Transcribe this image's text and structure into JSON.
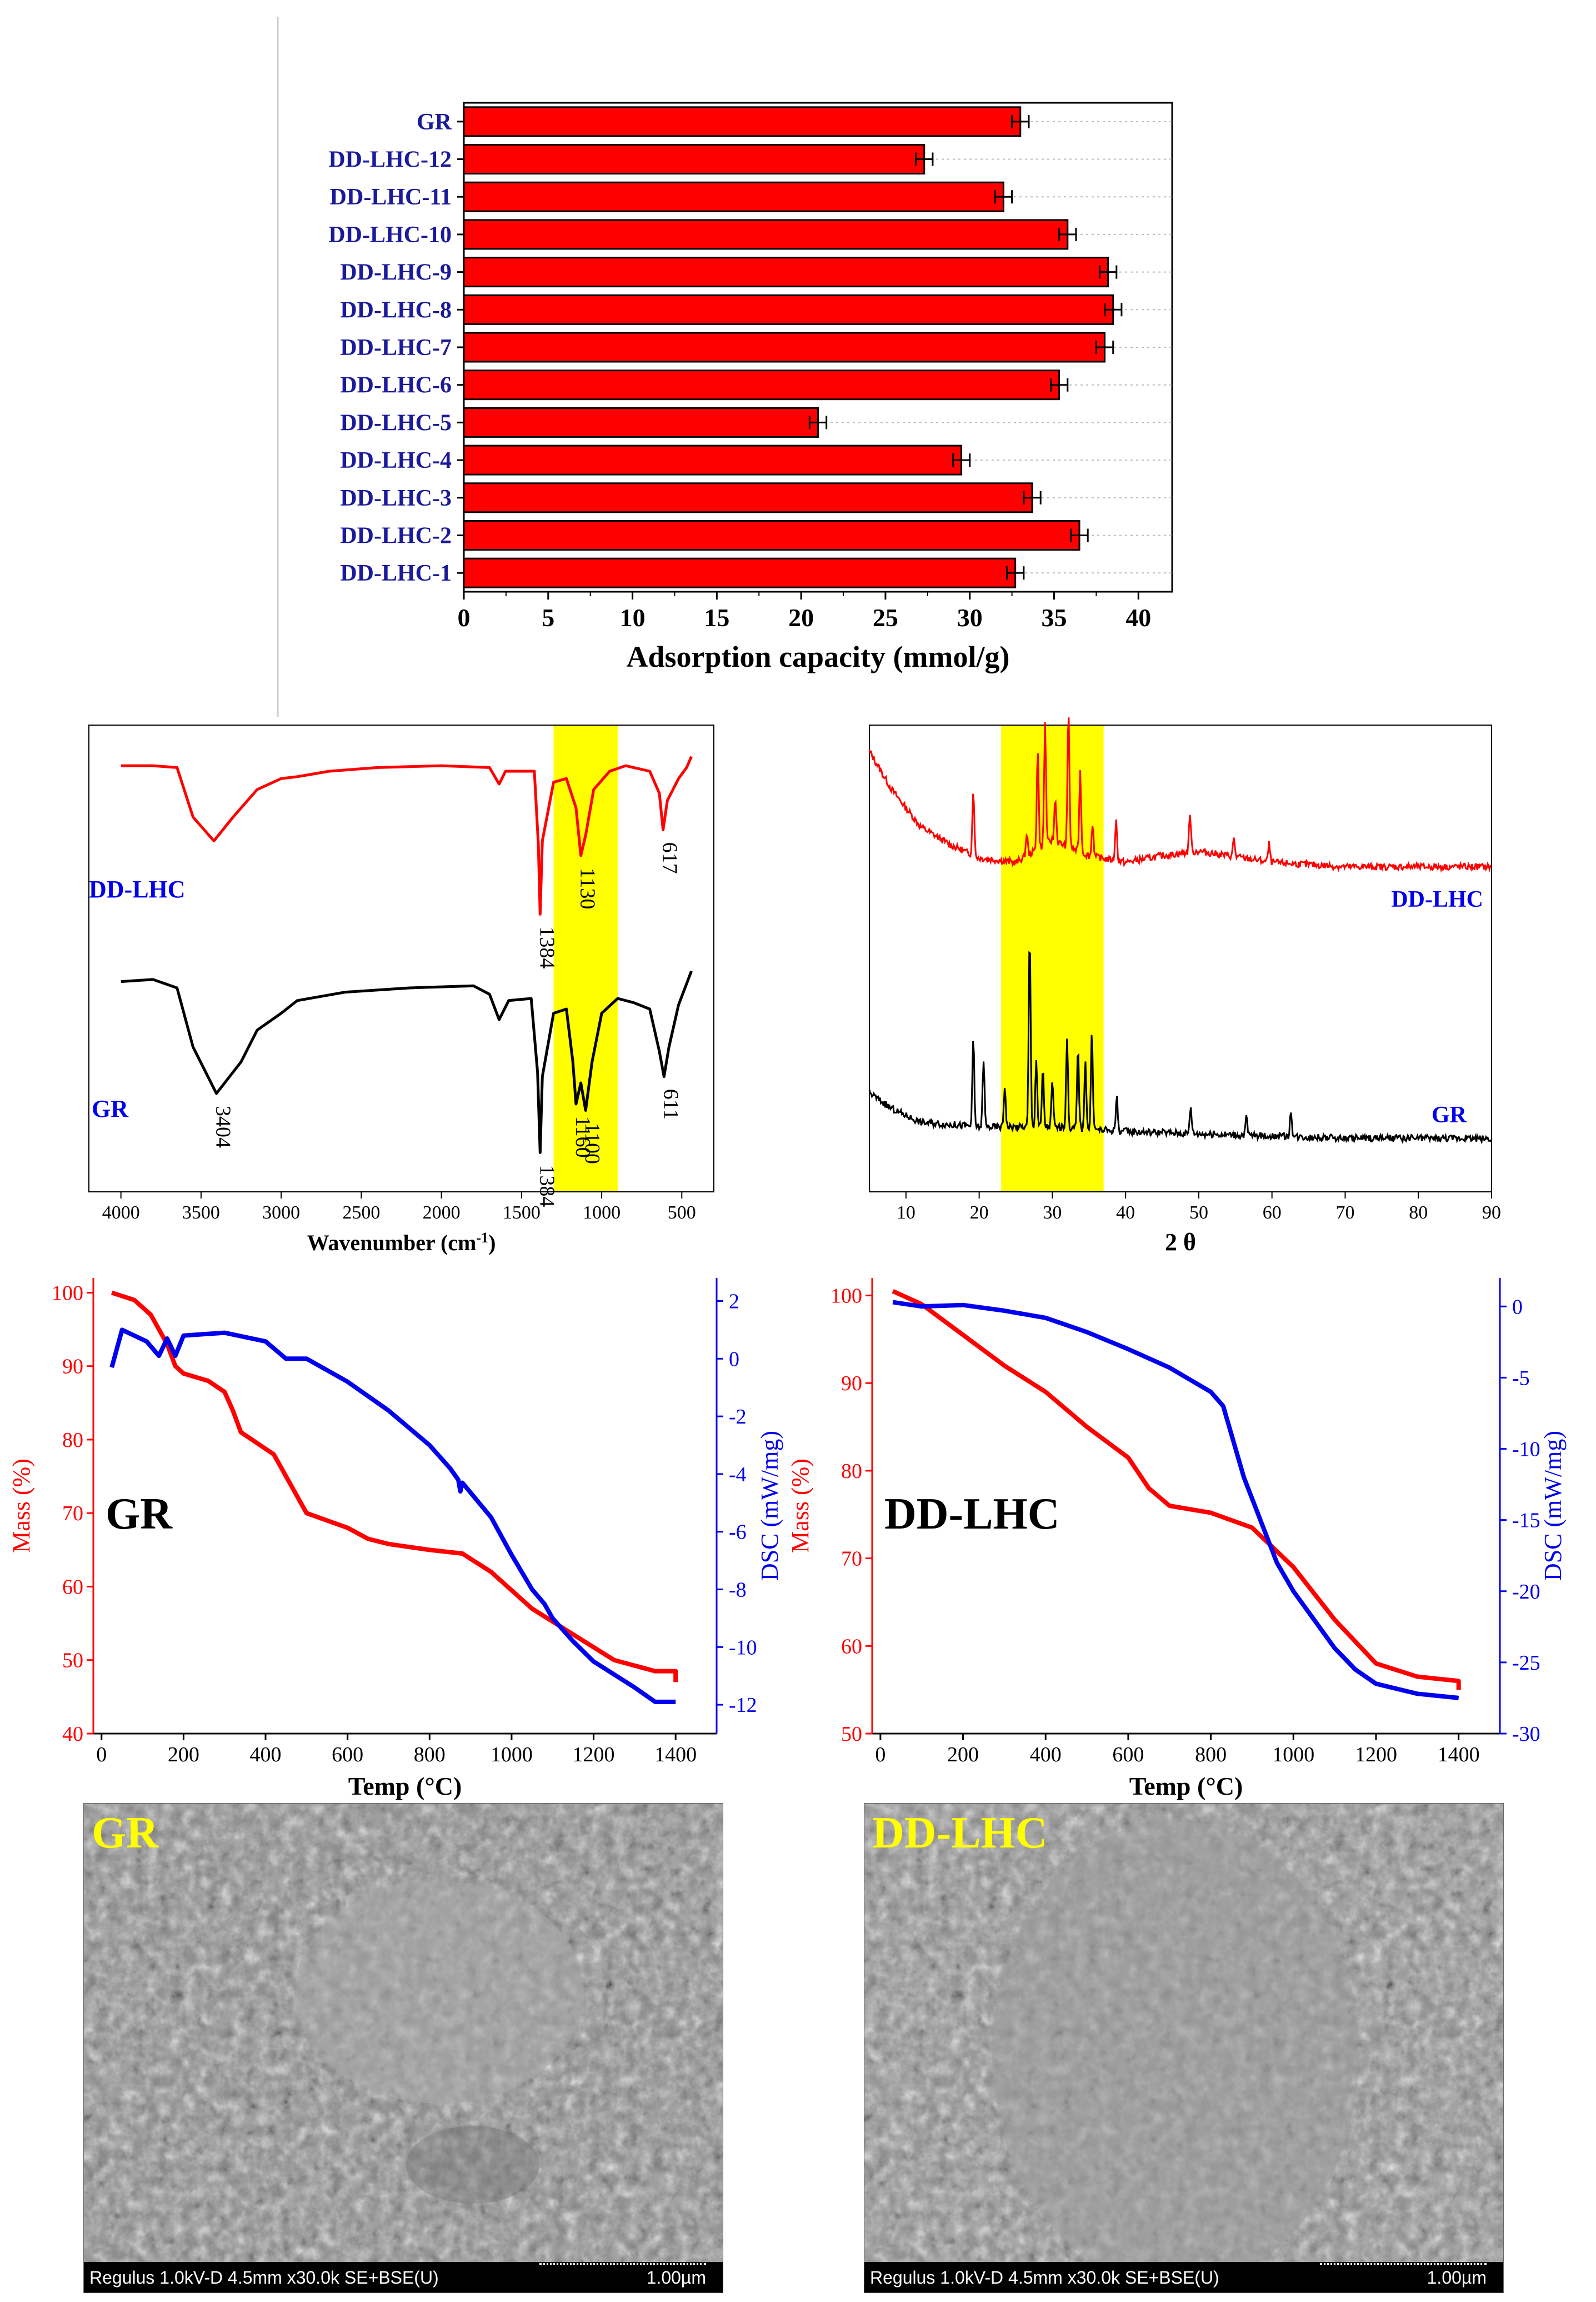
{
  "colors": {
    "red": "#ff0000",
    "blue": "#0000ee",
    "black": "#000000",
    "navy": "#1a1a9a",
    "yellow": "#ffff00"
  },
  "chart_data": [
    {
      "type": "bar",
      "orientation": "horizontal",
      "categories": [
        "GR",
        "DD-LHC-12",
        "DD-LHC-11",
        "DD-LHC-10",
        "DD-LHC-9",
        "DD-LHC-8",
        "DD-LHC-7",
        "DD-LHC-6",
        "DD-LHC-5",
        "DD-LHC-4",
        "DD-LHC-3",
        "DD-LHC-2",
        "DD-LHC-1"
      ],
      "values": [
        33.0,
        27.3,
        32.0,
        35.8,
        38.2,
        38.5,
        38.0,
        35.3,
        21.0,
        29.5,
        33.7,
        36.5,
        32.7
      ],
      "errors": [
        0.5,
        0.5,
        0.5,
        0.5,
        0.5,
        0.5,
        0.5,
        0.5,
        0.5,
        0.5,
        0.5,
        0.5,
        0.5
      ],
      "xlabel": "Adsorption capacity (mmol/g)",
      "xlim": [
        0,
        42
      ],
      "xticks": [
        0,
        5,
        10,
        15,
        20,
        25,
        30,
        35,
        40
      ]
    },
    {
      "type": "line",
      "name": "FTIR",
      "xlabel": "Wavenumber (cm",
      "xlabel_sup": "-1",
      "xlabel_end": ")",
      "xlim": [
        4200,
        300
      ],
      "xticks": [
        4000,
        3500,
        3000,
        2500,
        2000,
        1500,
        1000,
        500
      ],
      "highlight_range": [
        1300,
        900
      ],
      "series": [
        {
          "name": "DD-LHC",
          "label": "DD-LHC",
          "points": [
            [
              4000,
              0.93
            ],
            [
              3800,
              0.93
            ],
            [
              3650,
              0.92
            ],
            [
              3550,
              0.65
            ],
            [
              3420,
              0.52
            ],
            [
              3300,
              0.65
            ],
            [
              3150,
              0.8
            ],
            [
              3000,
              0.86
            ],
            [
              2900,
              0.87
            ],
            [
              2700,
              0.9
            ],
            [
              2400,
              0.92
            ],
            [
              2000,
              0.93
            ],
            [
              1700,
              0.92
            ],
            [
              1640,
              0.83
            ],
            [
              1600,
              0.9
            ],
            [
              1420,
              0.9
            ],
            [
              1395,
              0.5
            ],
            [
              1384,
              0.12
            ],
            [
              1370,
              0.52
            ],
            [
              1300,
              0.84
            ],
            [
              1220,
              0.86
            ],
            [
              1160,
              0.7
            ],
            [
              1130,
              0.44
            ],
            [
              1100,
              0.55
            ],
            [
              1050,
              0.8
            ],
            [
              950,
              0.9
            ],
            [
              850,
              0.93
            ],
            [
              700,
              0.9
            ],
            [
              640,
              0.78
            ],
            [
              617,
              0.58
            ],
            [
              590,
              0.74
            ],
            [
              520,
              0.86
            ],
            [
              470,
              0.92
            ],
            [
              440,
              0.98
            ]
          ],
          "annotations": [
            {
              "x": 1384,
              "text": "1384"
            },
            {
              "x": 1130,
              "text": "1130"
            },
            {
              "x": 617,
              "text": "617"
            }
          ]
        },
        {
          "name": "GR",
          "label": "GR",
          "points": [
            [
              4000,
              0.93
            ],
            [
              3800,
              0.94
            ],
            [
              3650,
              0.9
            ],
            [
              3550,
              0.62
            ],
            [
              3404,
              0.4
            ],
            [
              3250,
              0.55
            ],
            [
              3150,
              0.7
            ],
            [
              3000,
              0.78
            ],
            [
              2900,
              0.84
            ],
            [
              2600,
              0.88
            ],
            [
              2200,
              0.9
            ],
            [
              1800,
              0.91
            ],
            [
              1700,
              0.87
            ],
            [
              1640,
              0.75
            ],
            [
              1580,
              0.84
            ],
            [
              1440,
              0.85
            ],
            [
              1400,
              0.5
            ],
            [
              1384,
              0.12
            ],
            [
              1370,
              0.48
            ],
            [
              1300,
              0.78
            ],
            [
              1220,
              0.8
            ],
            [
              1180,
              0.55
            ],
            [
              1160,
              0.35
            ],
            [
              1130,
              0.45
            ],
            [
              1100,
              0.32
            ],
            [
              1060,
              0.55
            ],
            [
              1000,
              0.78
            ],
            [
              900,
              0.85
            ],
            [
              800,
              0.83
            ],
            [
              700,
              0.8
            ],
            [
              640,
              0.6
            ],
            [
              611,
              0.48
            ],
            [
              580,
              0.62
            ],
            [
              520,
              0.82
            ],
            [
              470,
              0.92
            ],
            [
              440,
              0.98
            ]
          ],
          "annotations": [
            {
              "x": 3404,
              "text": "3404"
            },
            {
              "x": 1384,
              "text": "1384"
            },
            {
              "x": 1160,
              "text": "1160"
            },
            {
              "x": 1100,
              "text": "1100"
            },
            {
              "x": 611,
              "text": "611"
            }
          ]
        }
      ]
    },
    {
      "type": "line",
      "name": "XRD",
      "xlabel": "2 θ",
      "xlim": [
        5,
        90
      ],
      "xticks": [
        10,
        20,
        30,
        40,
        50,
        60,
        70,
        80,
        90
      ],
      "highlight_range": [
        23,
        37
      ],
      "series": [
        {
          "name": "DD-LHC",
          "label": "DD-LHC",
          "baseline": [
            [
              5,
              0.92
            ],
            [
              8,
              0.75
            ],
            [
              12,
              0.58
            ],
            [
              16,
              0.5
            ],
            [
              20,
              0.44
            ],
            [
              25,
              0.42
            ],
            [
              30,
              0.52
            ],
            [
              35,
              0.45
            ],
            [
              40,
              0.42
            ],
            [
              45,
              0.45
            ],
            [
              50,
              0.47
            ],
            [
              60,
              0.42
            ],
            [
              70,
              0.4
            ],
            [
              80,
              0.4
            ],
            [
              90,
              0.4
            ]
          ],
          "peaks": [
            [
              19.2,
              0.3
            ],
            [
              26.5,
              0.1
            ],
            [
              28.0,
              0.45
            ],
            [
              29.0,
              0.55
            ],
            [
              30.4,
              0.2
            ],
            [
              32.2,
              0.62
            ],
            [
              33.8,
              0.36
            ],
            [
              35.5,
              0.15
            ],
            [
              38.7,
              0.18
            ],
            [
              48.8,
              0.18
            ],
            [
              54.8,
              0.08
            ],
            [
              59.6,
              0.08
            ]
          ]
        },
        {
          "name": "GR",
          "label": "GR",
          "baseline": [
            [
              5,
              0.35
            ],
            [
              8,
              0.28
            ],
            [
              12,
              0.22
            ],
            [
              20,
              0.2
            ],
            [
              30,
              0.2
            ],
            [
              40,
              0.18
            ],
            [
              50,
              0.17
            ],
            [
              60,
              0.16
            ],
            [
              70,
              0.15
            ],
            [
              90,
              0.15
            ]
          ],
          "peaks": [
            [
              19.2,
              0.38
            ],
            [
              20.6,
              0.3
            ],
            [
              23.5,
              0.18
            ],
            [
              26.9,
              0.85
            ],
            [
              27.8,
              0.3
            ],
            [
              28.7,
              0.25
            ],
            [
              30.0,
              0.2
            ],
            [
              32.0,
              0.4
            ],
            [
              33.5,
              0.35
            ],
            [
              34.5,
              0.3
            ],
            [
              35.4,
              0.42
            ],
            [
              38.8,
              0.15
            ],
            [
              48.9,
              0.12
            ],
            [
              56.5,
              0.08
            ],
            [
              62.6,
              0.12
            ]
          ]
        }
      ]
    },
    {
      "type": "line",
      "name": "TG-DSC GR",
      "panel_label": "GR",
      "xlabel": "Temp (°C)",
      "ylabel_left": "Mass (%)",
      "ylabel_right": "DSC (mW/mg)",
      "xlim": [
        -20,
        1500
      ],
      "ylim_left": [
        40,
        102
      ],
      "ylim_right": [
        -13,
        2.8
      ],
      "xticks": [
        0,
        200,
        400,
        600,
        800,
        1000,
        1200,
        1400
      ],
      "yticks_left": [
        40,
        50,
        60,
        70,
        80,
        90,
        100
      ],
      "yticks_right": [
        2,
        0,
        -2,
        -4,
        -6,
        -8,
        -10,
        -12
      ],
      "series": [
        {
          "name": "Mass",
          "axis": "left",
          "points": [
            [
              25,
              100
            ],
            [
              80,
              99
            ],
            [
              120,
              97
            ],
            [
              160,
              93
            ],
            [
              180,
              90
            ],
            [
              200,
              89
            ],
            [
              260,
              88
            ],
            [
              300,
              86.5
            ],
            [
              320,
              84
            ],
            [
              340,
              81
            ],
            [
              380,
              79.5
            ],
            [
              420,
              78
            ],
            [
              460,
              74
            ],
            [
              500,
              70
            ],
            [
              550,
              69
            ],
            [
              600,
              68
            ],
            [
              650,
              66.5
            ],
            [
              700,
              65.8
            ],
            [
              800,
              65
            ],
            [
              880,
              64.5
            ],
            [
              950,
              62
            ],
            [
              1050,
              57
            ],
            [
              1150,
              53.5
            ],
            [
              1250,
              50
            ],
            [
              1350,
              48.5
            ],
            [
              1400,
              48.5
            ],
            [
              1400,
              47
            ]
          ]
        },
        {
          "name": "DSC",
          "axis": "right",
          "points": [
            [
              25,
              -0.3
            ],
            [
              50,
              1.0
            ],
            [
              80,
              0.8
            ],
            [
              110,
              0.6
            ],
            [
              140,
              0.1
            ],
            [
              160,
              0.7
            ],
            [
              180,
              0.1
            ],
            [
              200,
              0.8
            ],
            [
              300,
              0.9
            ],
            [
              400,
              0.6
            ],
            [
              450,
              0
            ],
            [
              500,
              0
            ],
            [
              600,
              -0.8
            ],
            [
              700,
              -1.8
            ],
            [
              800,
              -3
            ],
            [
              850,
              -3.8
            ],
            [
              870,
              -4.2
            ],
            [
              875,
              -4.6
            ],
            [
              880,
              -4.3
            ],
            [
              950,
              -5.5
            ],
            [
              1000,
              -6.8
            ],
            [
              1050,
              -8.0
            ],
            [
              1080,
              -8.5
            ],
            [
              1100,
              -9.0
            ],
            [
              1150,
              -9.8
            ],
            [
              1200,
              -10.5
            ],
            [
              1300,
              -11.4
            ],
            [
              1350,
              -11.9
            ],
            [
              1400,
              -11.9
            ]
          ]
        }
      ]
    },
    {
      "type": "line",
      "name": "TG-DSC DD-LHC",
      "panel_label": "DD-LHC",
      "xlabel": "Temp (°C)",
      "ylabel_left": "Mass (%)",
      "ylabel_right": "DSC (mW/mg)",
      "xlim": [
        -20,
        1500
      ],
      "ylim_left": [
        50,
        102
      ],
      "ylim_right": [
        -30,
        2
      ],
      "xticks": [
        0,
        200,
        400,
        600,
        800,
        1000,
        1200,
        1400
      ],
      "yticks_left": [
        50,
        60,
        70,
        80,
        90,
        100
      ],
      "yticks_right": [
        0,
        -5,
        -10,
        -15,
        -20,
        -25,
        -30
      ],
      "series": [
        {
          "name": "Mass",
          "axis": "left",
          "points": [
            [
              30,
              100.5
            ],
            [
              100,
              99
            ],
            [
              200,
              95.5
            ],
            [
              300,
              92
            ],
            [
              400,
              89
            ],
            [
              500,
              85
            ],
            [
              600,
              81.5
            ],
            [
              650,
              78
            ],
            [
              700,
              76
            ],
            [
              800,
              75.2
            ],
            [
              900,
              73.5
            ],
            [
              1000,
              69
            ],
            [
              1100,
              63
            ],
            [
              1200,
              58
            ],
            [
              1300,
              56.5
            ],
            [
              1400,
              56
            ],
            [
              1400,
              55
            ]
          ]
        },
        {
          "name": "DSC",
          "axis": "right",
          "points": [
            [
              30,
              0.3
            ],
            [
              100,
              0
            ],
            [
              200,
              0.1
            ],
            [
              300,
              -0.3
            ],
            [
              400,
              -0.8
            ],
            [
              500,
              -1.8
            ],
            [
              600,
              -3
            ],
            [
              700,
              -4.3
            ],
            [
              800,
              -6
            ],
            [
              830,
              -7
            ],
            [
              850,
              -9
            ],
            [
              880,
              -12
            ],
            [
              920,
              -15
            ],
            [
              960,
              -18
            ],
            [
              1000,
              -20
            ],
            [
              1050,
              -22
            ],
            [
              1100,
              -24
            ],
            [
              1150,
              -25.5
            ],
            [
              1200,
              -26.5
            ],
            [
              1300,
              -27.2
            ],
            [
              1400,
              -27.5
            ]
          ]
        }
      ]
    }
  ],
  "sem": [
    {
      "label": "GR",
      "info": "Regulus 1.0kV-D 4.5mm x30.0k SE+BSE(U)",
      "scale": "1.00µm"
    },
    {
      "label": "DD-LHC",
      "info": "Regulus 1.0kV-D 4.5mm x30.0k SE+BSE(U)",
      "scale": "1.00µm"
    }
  ]
}
